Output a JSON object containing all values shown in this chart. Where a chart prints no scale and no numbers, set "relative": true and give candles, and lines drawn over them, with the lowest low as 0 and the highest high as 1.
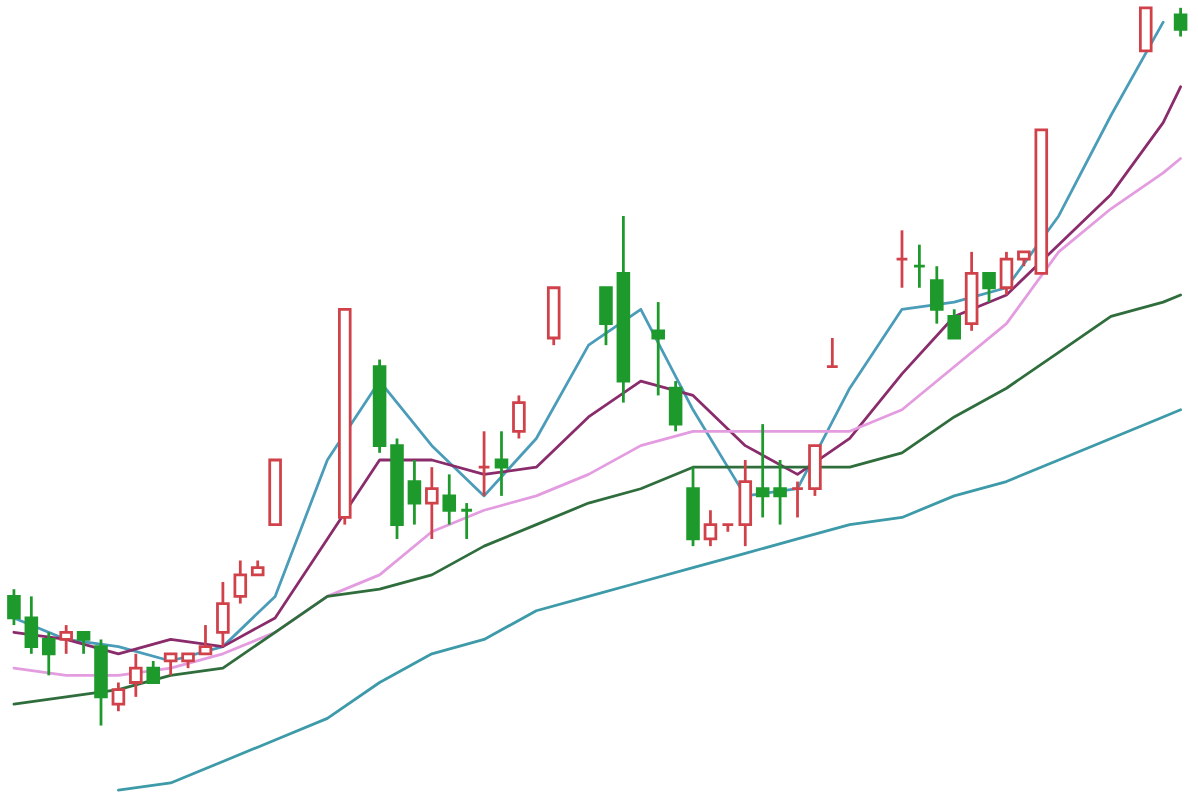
{
  "chart_data": {
    "type": "candlestick",
    "relative": true,
    "categories": [
      null,
      null,
      null,
      null,
      null,
      null,
      null,
      null,
      null,
      null,
      null,
      null,
      null,
      null,
      null,
      null,
      null,
      null,
      null,
      null,
      null,
      null,
      null,
      null,
      null,
      null,
      null,
      null,
      null,
      null,
      null,
      null,
      null,
      null,
      null,
      null,
      null,
      null,
      null,
      null,
      null,
      null,
      null,
      null,
      null,
      null,
      null,
      null,
      null,
      null,
      null,
      null,
      null,
      null,
      null,
      null,
      null,
      null,
      null,
      null,
      null,
      null,
      null,
      null,
      null,
      null,
      null,
      null
    ],
    "ohlc": [
      [
        0.18,
        0.19,
        0.14,
        0.15
      ],
      [
        0.15,
        0.18,
        0.1,
        0.11
      ],
      [
        0.12,
        0.13,
        0.07,
        0.1
      ],
      [
        0.12,
        0.14,
        0.1,
        0.13
      ],
      [
        0.13,
        0.13,
        0.1,
        0.12
      ],
      [
        0.11,
        0.12,
        0,
        0.04
      ],
      [
        0.03,
        0.06,
        0.02,
        0.05
      ],
      [
        0.06,
        0.1,
        0.04,
        0.08
      ],
      [
        0.08,
        0.09,
        0.06,
        0.06
      ],
      [
        0.09,
        0.1,
        0.07,
        0.1
      ],
      [
        0.09,
        0.1,
        0.08,
        0.1
      ],
      [
        0.1,
        0.14,
        0.1,
        0.11
      ],
      [
        0.13,
        0.2,
        0.11,
        0.17
      ],
      [
        0.18,
        0.23,
        0.17,
        0.21
      ],
      [
        0.21,
        0.23,
        0.21,
        0.22
      ],
      [
        0.28,
        0.37,
        0.28,
        0.37
      ],
      null,
      null,
      null,
      [
        0.29,
        0.58,
        0.28,
        0.58
      ],
      null,
      [
        0.5,
        0.51,
        0.38,
        0.39
      ],
      [
        0.39,
        0.4,
        0.26,
        0.28
      ],
      [
        0.34,
        0.37,
        0.28,
        0.31
      ],
      [
        0.31,
        0.36,
        0.26,
        0.33
      ],
      [
        0.32,
        0.35,
        0.28,
        0.3
      ],
      [
        0.3,
        0.31,
        0.26,
        0.3
      ],
      [
        0.36,
        0.41,
        0.32,
        0.36
      ],
      [
        0.37,
        0.41,
        0.32,
        0.36
      ],
      [
        0.41,
        0.46,
        0.4,
        0.45
      ],
      null,
      [
        0.54,
        0.61,
        0.53,
        0.61
      ],
      null,
      null,
      [
        0.61,
        0.61,
        0.53,
        0.56
      ],
      [
        0.63,
        0.71,
        0.45,
        0.48
      ],
      null,
      [
        0.55,
        0.59,
        0.46,
        0.54
      ],
      [
        0.47,
        0.48,
        0.41,
        0.42
      ],
      [
        0.33,
        0.36,
        0.25,
        0.26
      ],
      [
        0.26,
        0.3,
        0.25,
        0.28
      ],
      [
        0.28,
        0.28,
        0.27,
        0.28
      ],
      [
        0.28,
        0.37,
        0.25,
        0.34
      ],
      [
        0.33,
        0.42,
        0.29,
        0.32
      ],
      [
        0.33,
        0.37,
        0.28,
        0.32
      ],
      [
        0.33,
        0.34,
        0.29,
        0.33
      ],
      [
        0.33,
        0.39,
        0.32,
        0.39
      ],
      [
        0.5,
        0.54,
        0.5,
        0.5
      ],
      null,
      null,
      null,
      [
        0.65,
        0.69,
        0.61,
        0.65
      ],
      [
        0.64,
        0.67,
        0.61,
        0.64
      ],
      [
        0.62,
        0.64,
        0.56,
        0.58
      ],
      [
        0.57,
        0.58,
        0.54,
        0.54
      ],
      [
        0.56,
        0.66,
        0.55,
        0.63
      ],
      [
        0.63,
        0.63,
        0.59,
        0.61
      ],
      [
        0.61,
        0.66,
        0.6,
        0.65
      ],
      [
        0.65,
        0.66,
        0.64,
        0.66
      ],
      [
        0.63,
        0.83,
        0.63,
        0.83
      ],
      null,
      null,
      null,
      null,
      null,
      [
        0.94,
        1,
        0.94,
        1
      ],
      null,
      [
        0.99,
        1,
        0.96,
        0.97
      ]
    ],
    "colors": [
      "#1e9a2c",
      "#1e9a2c",
      "#1e9a2c",
      "#d0414a",
      "#1e9a2c",
      "#1e9a2c",
      "#d0414a",
      "#d0414a",
      "#1e9a2c",
      "#d0414a",
      "#d0414a",
      "#d0414a",
      "#d0414a",
      "#d0414a",
      "#d0414a",
      "#d0414a",
      null,
      null,
      null,
      "#d0414a",
      null,
      "#1e9a2c",
      "#1e9a2c",
      "#1e9a2c",
      "#d0414a",
      "#1e9a2c",
      "#1e9a2c",
      "#d0414a",
      "#1e9a2c",
      "#d0414a",
      null,
      "#d0414a",
      null,
      null,
      "#1e9a2c",
      "#1e9a2c",
      null,
      "#1e9a2c",
      "#1e9a2c",
      "#1e9a2c",
      "#d0414a",
      "#d0414a",
      "#d0414a",
      "#1e9a2c",
      "#1e9a2c",
      "#d0414a",
      "#d0414a",
      "#d0414a",
      null,
      null,
      null,
      "#d0414a",
      "#1e9a2c",
      "#1e9a2c",
      "#1e9a2c",
      "#d0414a",
      "#1e9a2c",
      "#d0414a",
      "#d0414a",
      "#d0414a",
      null,
      null,
      null,
      null,
      null,
      "#d0414a",
      null,
      "#1e9a2c"
    ],
    "series": [
      {
        "type": "line",
        "color": "#4a9cb8",
        "values": [
          0.15,
          null,
          null,
          0.12,
          null,
          null,
          0.11,
          null,
          null,
          0.09,
          null,
          null,
          0.11,
          null,
          null,
          0.18,
          null,
          null,
          0.37,
          null,
          null,
          0.48,
          null,
          null,
          0.39,
          null,
          null,
          0.32,
          null,
          null,
          0.4,
          null,
          null,
          0.53,
          null,
          null,
          0.58,
          null,
          null,
          0.44,
          null,
          null,
          0.32,
          null,
          null,
          0.33,
          null,
          null,
          0.47,
          null,
          null,
          0.58,
          null,
          null,
          0.59,
          null,
          null,
          0.61,
          null,
          null,
          0.71,
          null,
          null,
          0.85,
          null,
          null,
          0.98,
          null
        ]
      },
      {
        "type": "line",
        "color": "#8a2c6c",
        "values": [
          0.13,
          null,
          null,
          0.12,
          null,
          null,
          0.1,
          null,
          null,
          0.12,
          null,
          null,
          0.11,
          null,
          null,
          0.15,
          null,
          null,
          0.26,
          null,
          null,
          0.37,
          null,
          null,
          0.37,
          null,
          null,
          0.35,
          null,
          null,
          0.36,
          null,
          null,
          0.43,
          null,
          null,
          0.48,
          null,
          null,
          0.46,
          null,
          null,
          0.39,
          null,
          null,
          0.35,
          null,
          null,
          0.4,
          null,
          null,
          0.49,
          null,
          null,
          0.57,
          null,
          null,
          0.6,
          null,
          null,
          0.67,
          null,
          null,
          0.74,
          null,
          null,
          0.84,
          0.89
        ]
      },
      {
        "type": "line",
        "color": "#e49ce0",
        "values": [
          0.08,
          null,
          null,
          0.07,
          null,
          null,
          0.07,
          null,
          null,
          0.08,
          null,
          null,
          0.1,
          null,
          null,
          0.13,
          null,
          null,
          0.18,
          null,
          null,
          0.21,
          null,
          null,
          0.27,
          null,
          null,
          0.3,
          null,
          null,
          0.32,
          null,
          null,
          0.35,
          null,
          null,
          0.39,
          null,
          null,
          0.41,
          null,
          null,
          0.41,
          null,
          null,
          0.41,
          null,
          null,
          0.41,
          null,
          null,
          0.44,
          null,
          null,
          0.5,
          null,
          null,
          0.56,
          null,
          null,
          0.66,
          null,
          null,
          0.72,
          null,
          null,
          0.77,
          0.79
        ]
      },
      {
        "type": "line",
        "color": "#2f6e3c",
        "values": [
          0.03,
          null,
          null,
          0.04,
          null,
          null,
          0.05,
          null,
          null,
          0.07,
          null,
          null,
          0.08,
          null,
          null,
          0.13,
          null,
          null,
          0.18,
          null,
          null,
          0.19,
          null,
          null,
          0.21,
          null,
          null,
          0.25,
          null,
          null,
          0.28,
          null,
          null,
          0.31,
          null,
          null,
          0.33,
          null,
          null,
          0.36,
          null,
          null,
          0.36,
          null,
          null,
          0.36,
          null,
          null,
          0.36,
          null,
          null,
          0.38,
          null,
          null,
          0.43,
          null,
          null,
          0.47,
          null,
          null,
          0.52,
          null,
          null,
          0.57,
          null,
          null,
          0.59,
          0.6
        ]
      },
      {
        "type": "line",
        "color": "#3d9aa8",
        "values": [
          null,
          null,
          null,
          null,
          null,
          null,
          -0.09,
          null,
          null,
          -0.08,
          null,
          null,
          -0.05,
          null,
          null,
          -0.02,
          null,
          null,
          0.01,
          null,
          null,
          0.06,
          null,
          null,
          0.1,
          null,
          null,
          0.12,
          null,
          null,
          0.16,
          null,
          null,
          0.18,
          null,
          null,
          0.2,
          null,
          null,
          0.22,
          null,
          null,
          0.24,
          null,
          null,
          0.26,
          null,
          null,
          0.28,
          null,
          null,
          0.29,
          null,
          null,
          0.32,
          null,
          null,
          0.34,
          null,
          null,
          0.37,
          null,
          null,
          0.4,
          null,
          null,
          0.43,
          0.44
        ]
      }
    ]
  }
}
